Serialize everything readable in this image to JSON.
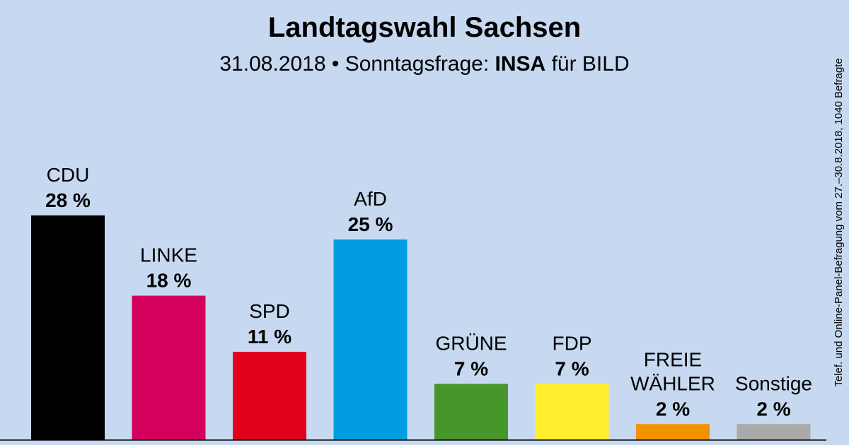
{
  "chart_data": {
    "type": "bar",
    "title": "Landtagswahl Sachsen",
    "subtitle": {
      "date": "31.08.2018",
      "separator": " • ",
      "prefix": "Sonntagsfrage: ",
      "institute": "INSA",
      "suffix": " für BILD"
    },
    "source": "Telef. und Online-Panel-Befragung vom 27.–30.8.2018, 1040 Befragte",
    "unit": "%",
    "ylim": [
      0,
      28
    ],
    "grid": false,
    "categories": [
      "CDU",
      "LINKE",
      "SPD",
      "AfD",
      "GRÜNE",
      "FDP",
      "FREIE WÄHLER",
      "Sonstige"
    ],
    "label_lines": [
      [
        "CDU"
      ],
      [
        "LINKE"
      ],
      [
        "SPD"
      ],
      [
        "AfD"
      ],
      [
        "GRÜNE"
      ],
      [
        "FDP"
      ],
      [
        "FREIE",
        "WÄHLER"
      ],
      [
        "Sonstige"
      ]
    ],
    "values": [
      28,
      18,
      11,
      25,
      7,
      7,
      2,
      2
    ],
    "value_labels": [
      "28 %",
      "18 %",
      "11 %",
      "25 %",
      "7 %",
      "7 %",
      "2 %",
      "2 %"
    ],
    "colors": [
      "#000000",
      "#d5005e",
      "#e3001b",
      "#009ee0",
      "#46962b",
      "#ffed2e",
      "#f39200",
      "#aaaaaa"
    ]
  }
}
